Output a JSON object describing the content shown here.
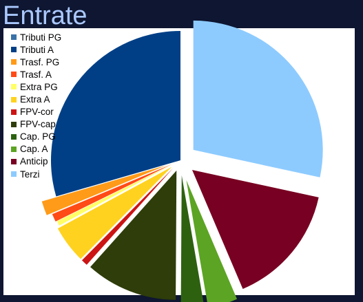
{
  "title": "Entrate",
  "chart_data": {
    "type": "pie",
    "title": "Entrate",
    "legend_position": "top-left",
    "categories": [
      "Tributi PG",
      "Tributi A",
      "Trasf. PG",
      "Trasf. A",
      "Extra PG",
      "Extra A",
      "FPV-cor",
      "FPV-cap",
      "Cap. PG",
      "Cap. A",
      "Anticip",
      "Terzi"
    ],
    "values": [
      0.0,
      29.5,
      1.8,
      1.0,
      0.6,
      4.7,
      0.8,
      11.5,
      2.8,
      3.7,
      15.2,
      28.4
    ],
    "value_unit": "% of total (estimated)",
    "exploded": true,
    "colors": [
      "#3a72a8",
      "#003f86",
      "#ff9b18",
      "#ff4b16",
      "#ffff66",
      "#ffd21f",
      "#cc1414",
      "#2e3d0a",
      "#2d6110",
      "#5ca423",
      "#780022",
      "#8dcbff"
    ]
  }
}
